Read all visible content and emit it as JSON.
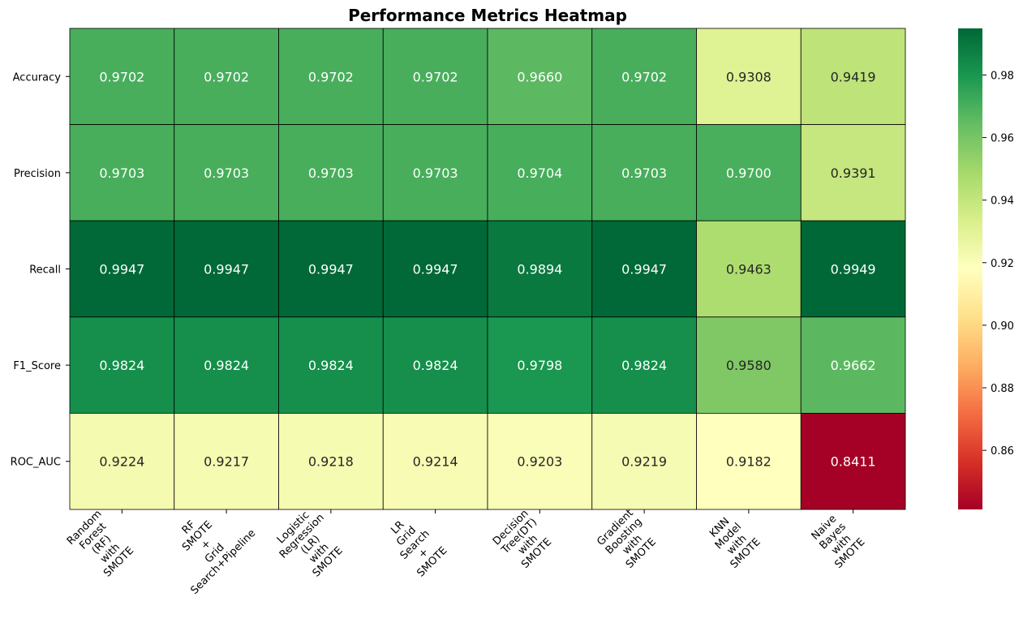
{
  "chart_data": {
    "type": "heatmap",
    "title": "Performance Metrics Heatmap",
    "xlabel": "",
    "ylabel": "",
    "colormap": "RdYlGn",
    "color_range": [
      0.8411,
      0.9949
    ],
    "rows": [
      "Accuracy",
      "Precision",
      "Recall",
      "F1_Score",
      "ROC_AUC"
    ],
    "columns": [
      [
        "Random",
        "Forest",
        "(RF)",
        "with",
        "SMOTE"
      ],
      [
        "RF",
        "SMOTE",
        "+",
        "Grid",
        "Search+Pipeline"
      ],
      [
        "Logistic",
        "Regression",
        "(LR)",
        "with",
        "SMOTE"
      ],
      [
        "LR",
        "Grid",
        "Search",
        "+",
        "SMOTE"
      ],
      [
        "Decision",
        "Tree(DT)",
        "with",
        "SMOTE"
      ],
      [
        "Gradient",
        "Boosting",
        "with",
        "SMOTE"
      ],
      [
        "KNN",
        "Model",
        "with",
        "SMOTE"
      ],
      [
        "Naive",
        "Bayes",
        "with",
        "SMOTE"
      ]
    ],
    "values": [
      [
        0.9702,
        0.9702,
        0.9702,
        0.9702,
        0.966,
        0.9702,
        0.9308,
        0.9419
      ],
      [
        0.9703,
        0.9703,
        0.9703,
        0.9703,
        0.9704,
        0.9703,
        0.97,
        0.9391
      ],
      [
        0.9947,
        0.9947,
        0.9947,
        0.9947,
        0.9894,
        0.9947,
        0.9463,
        0.9949
      ],
      [
        0.9824,
        0.9824,
        0.9824,
        0.9824,
        0.9798,
        0.9824,
        0.958,
        0.9662
      ],
      [
        0.9224,
        0.9217,
        0.9218,
        0.9214,
        0.9203,
        0.9219,
        0.9182,
        0.8411
      ]
    ],
    "value_format": "4 decimals",
    "colorbar": {
      "ticks": [
        0.86,
        0.88,
        0.9,
        0.92,
        0.94,
        0.96,
        0.98
      ]
    }
  }
}
